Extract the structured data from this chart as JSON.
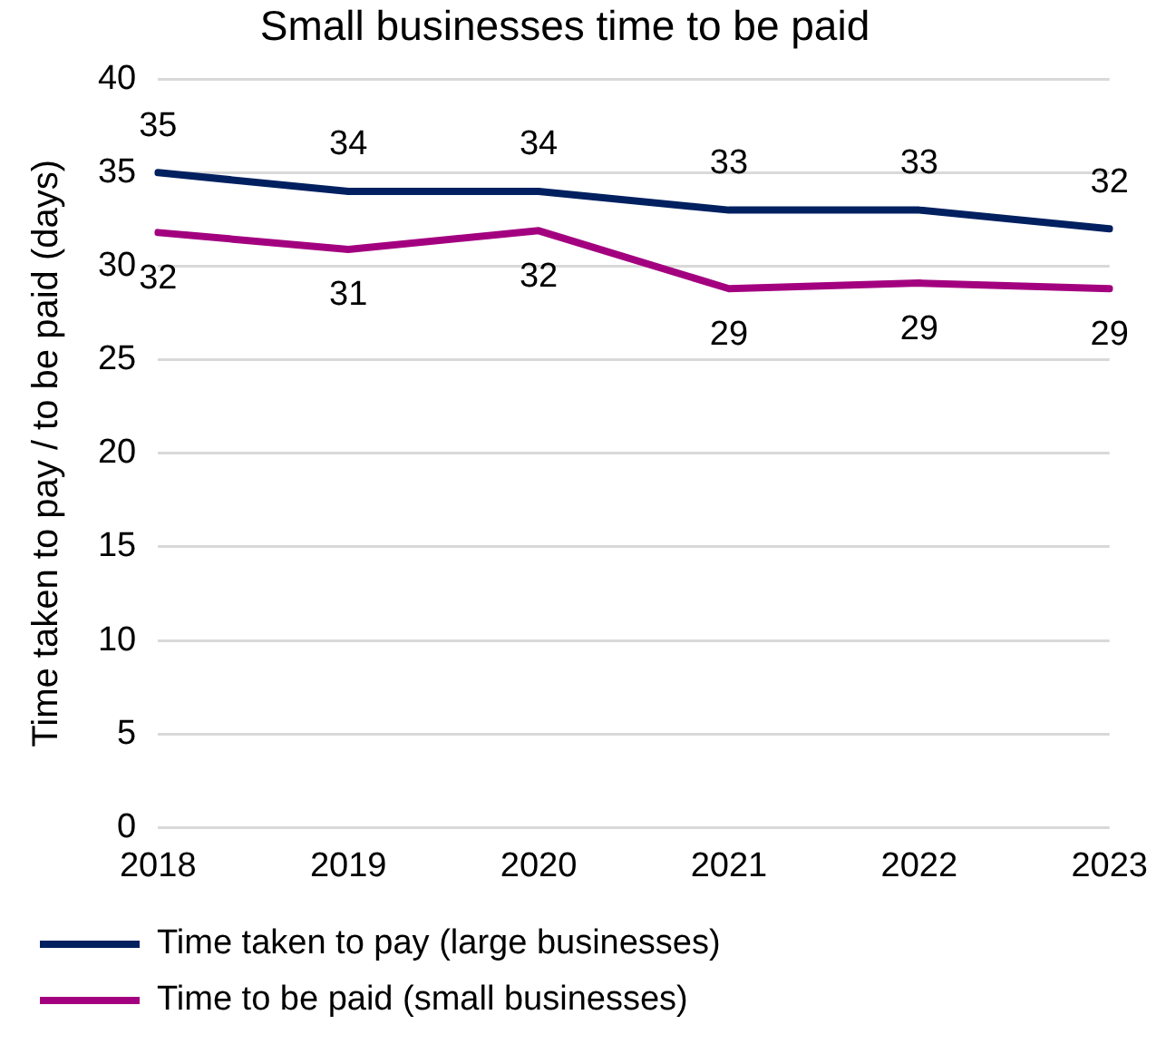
{
  "chart_data": {
    "type": "line",
    "title": "Small businesses time to be paid",
    "ylabel": "Time taken to pay / to be paid (days)",
    "categories": [
      "2018",
      "2019",
      "2020",
      "2021",
      "2022",
      "2023"
    ],
    "series": [
      {
        "name": "Time taken to pay (large businesses)",
        "color": "#002060",
        "values": [
          35,
          34,
          34,
          33,
          33,
          32
        ],
        "value_labels": [
          "35",
          "34",
          "34",
          "33",
          "33",
          "32"
        ]
      },
      {
        "name": "Time to be paid (small businesses)",
        "color": "#a3007f",
        "values": [
          31.8,
          30.9,
          31.9,
          28.8,
          29.1,
          28.8
        ],
        "value_labels": [
          "32",
          "31",
          "32",
          "29",
          "29",
          "29"
        ]
      }
    ],
    "ylim": [
      0,
      40
    ],
    "yticks": [
      0,
      5,
      10,
      15,
      20,
      25,
      30,
      35,
      40
    ],
    "grid": "y",
    "legend": "bottom",
    "marker": "none",
    "line_style": "solid"
  }
}
